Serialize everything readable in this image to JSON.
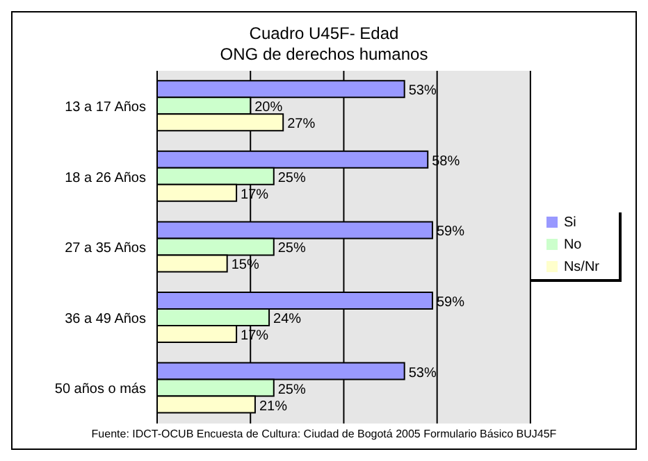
{
  "chart_data": {
    "type": "bar",
    "orientation": "horizontal",
    "title": "Cuadro U45F- Edad",
    "subtitle": "ONG de derechos humanos",
    "categories": [
      "13 a 17 Años",
      "18 a 26 Años",
      "27 a 35 Años",
      "36 a 49 Años",
      "50 años o más"
    ],
    "series": [
      {
        "name": "Si",
        "color": "#9999ff",
        "values": [
          53,
          58,
          59,
          59,
          53
        ],
        "value_labels": [
          "53%",
          "58%",
          "59%",
          "59%",
          "53%"
        ]
      },
      {
        "name": "No",
        "color": "#ccffcc",
        "values": [
          20,
          25,
          25,
          24,
          25
        ],
        "value_labels": [
          "20%",
          "25%",
          "25%",
          "24%",
          "25%"
        ]
      },
      {
        "name": "Ns/Nr",
        "color": "#ffffcc",
        "values": [
          27,
          17,
          15,
          17,
          21
        ],
        "value_labels": [
          "27%",
          "17%",
          "15%",
          "17%",
          "21%"
        ]
      }
    ],
    "xlim": [
      0,
      80
    ],
    "tick_labels": "y",
    "grid": "x",
    "legend": "right",
    "annotations": [
      "Fuente: IDCT-OCUB Encuesta de Cultura: Ciudad de Bogotá 2005 Formulario Básico BUJ45F"
    ]
  }
}
